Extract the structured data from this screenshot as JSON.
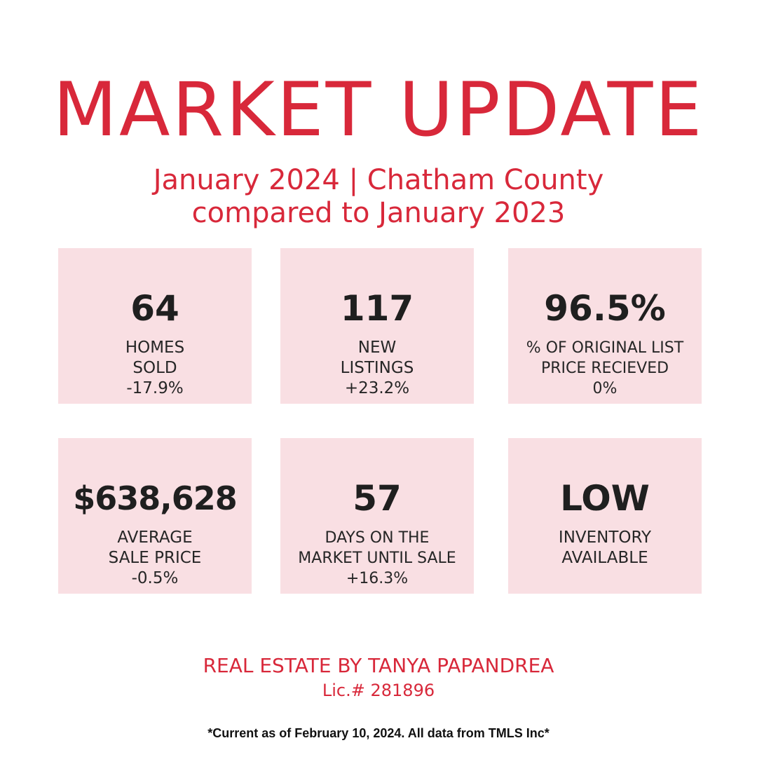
{
  "header": {
    "title": "MARKET UPDATE",
    "subtitle_line1": "January 2024 | Chatham County",
    "subtitle_line2": "compared to January 2023"
  },
  "stats": [
    {
      "value": "64",
      "label_line1": "HOMES",
      "label_line2": "SOLD",
      "change": "-17.9%"
    },
    {
      "value": "117",
      "label_line1": "NEW",
      "label_line2": "LISTINGS",
      "change": "+23.2%"
    },
    {
      "value": "96.5%",
      "label_line1": "% OF ORIGINAL LIST",
      "label_line2": "PRICE RECIEVED",
      "change": "0%"
    },
    {
      "value": "$638,628",
      "label_line1": "AVERAGE",
      "label_line2": "SALE PRICE",
      "change": "-0.5%"
    },
    {
      "value": "57",
      "label_line1": "DAYS ON THE",
      "label_line2": "MARKET UNTIL SALE",
      "change": "+16.3%"
    },
    {
      "value": "LOW",
      "label_line1": "INVENTORY",
      "label_line2": "AVAILABLE"
    }
  ],
  "footer": {
    "brand": "REAL ESTATE BY TANYA PAPANDREA",
    "license": "Lic.# 281896",
    "note": "*Current as of February 10, 2024. All data from TMLS Inc*"
  },
  "colors": {
    "accent": "#d8283a",
    "card_background": "#f9dfe3",
    "text": "#1f1f1f"
  }
}
